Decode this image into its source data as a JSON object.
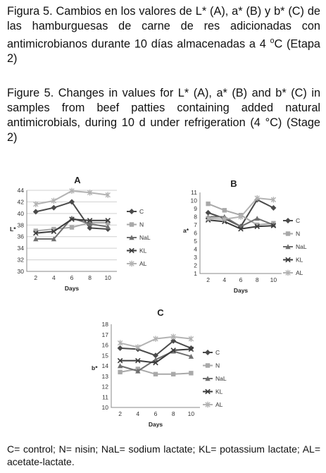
{
  "captions": {
    "spanish": "Figura 5. Cambios en los valores de L* (A), a* (B) y b* (C) de las hamburguesas de carne de res adicionadas con antimicrobianos durante 10 días almacenadas a 4 ",
    "spanish_unit_sup": "o",
    "spanish_unit": "C (Etapa 2)",
    "english": "Figure 5. Changes in values for L* (A), a* (B) and b* (C) in samples from beef patties containing added natural antimicrobials, during 10 d under refrigeration (4 °C) (Stage 2)"
  },
  "footnote": "C= control; N= nisin; NaL= sodium lactate; KL= potassium lactate; AL= acetate-lactate.",
  "colors": {
    "C": "#4a4a4a",
    "N": "#a9a9a9",
    "NaL": "#6f6f6f",
    "KL": "#3b3b3b",
    "AL": "#b3b3b3",
    "grid": "#d0d0d0",
    "axis": "#888888"
  },
  "chart_data": [
    {
      "type": "line",
      "title": "A",
      "xlabel": "Days",
      "ylabel": "L*",
      "x": [
        2,
        4,
        6,
        8,
        10
      ],
      "ylim": [
        30,
        44
      ],
      "yticks": [
        30,
        32,
        34,
        36,
        38,
        40,
        42,
        44
      ],
      "grid": true,
      "legend": "right",
      "series": [
        {
          "name": "C",
          "marker": "diamond",
          "values": [
            40.3,
            41.0,
            42.0,
            37.5,
            37.3
          ]
        },
        {
          "name": "N",
          "marker": "square",
          "values": [
            37.0,
            37.3,
            37.6,
            38.4,
            38.4
          ]
        },
        {
          "name": "NaL",
          "marker": "triangle",
          "values": [
            35.6,
            35.6,
            39.2,
            38.2,
            37.7
          ]
        },
        {
          "name": "KL",
          "marker": "x",
          "values": [
            36.6,
            36.9,
            39.0,
            38.8,
            38.8
          ]
        },
        {
          "name": "AL",
          "marker": "star",
          "values": [
            41.6,
            42.2,
            43.9,
            43.6,
            43.2
          ]
        }
      ]
    },
    {
      "type": "line",
      "title": "B",
      "xlabel": "Days",
      "ylabel": "a*",
      "x": [
        2,
        4,
        6,
        8,
        10
      ],
      "ylim": [
        1,
        11
      ],
      "yticks": [
        1,
        2,
        3,
        4,
        5,
        6,
        7,
        8,
        9,
        10,
        11
      ],
      "grid": false,
      "legend": "right",
      "series": [
        {
          "name": "C",
          "marker": "diamond",
          "values": [
            8.5,
            7.8,
            6.8,
            10.1,
            9.1
          ]
        },
        {
          "name": "N",
          "marker": "square",
          "values": [
            9.6,
            8.8,
            8.2,
            7.0,
            7.2
          ]
        },
        {
          "name": "NaL",
          "marker": "triangle",
          "values": [
            8.0,
            8.0,
            6.8,
            7.8,
            7.0
          ]
        },
        {
          "name": "KL",
          "marker": "x",
          "values": [
            7.6,
            7.4,
            6.5,
            6.8,
            6.9
          ]
        },
        {
          "name": "AL",
          "marker": "star",
          "values": [
            7.8,
            7.7,
            8.0,
            10.3,
            10.1
          ]
        }
      ]
    },
    {
      "type": "line",
      "title": "C",
      "xlabel": "Days",
      "ylabel": "b*",
      "x": [
        2,
        4,
        6,
        8,
        10
      ],
      "ylim": [
        10,
        18
      ],
      "yticks": [
        10,
        11,
        12,
        13,
        14,
        15,
        16,
        17,
        18
      ],
      "grid": false,
      "legend": "right",
      "series": [
        {
          "name": "C",
          "marker": "diamond",
          "values": [
            15.7,
            15.6,
            15.0,
            16.4,
            15.7
          ]
        },
        {
          "name": "N",
          "marker": "square",
          "values": [
            13.4,
            13.7,
            13.2,
            13.2,
            13.3
          ]
        },
        {
          "name": "NaL",
          "marker": "triangle",
          "values": [
            14.0,
            13.5,
            14.6,
            15.4,
            14.9
          ]
        },
        {
          "name": "KL",
          "marker": "x",
          "values": [
            14.5,
            14.5,
            14.3,
            15.5,
            15.6
          ]
        },
        {
          "name": "AL",
          "marker": "star",
          "values": [
            16.2,
            15.8,
            16.6,
            16.8,
            16.6
          ]
        }
      ]
    }
  ]
}
